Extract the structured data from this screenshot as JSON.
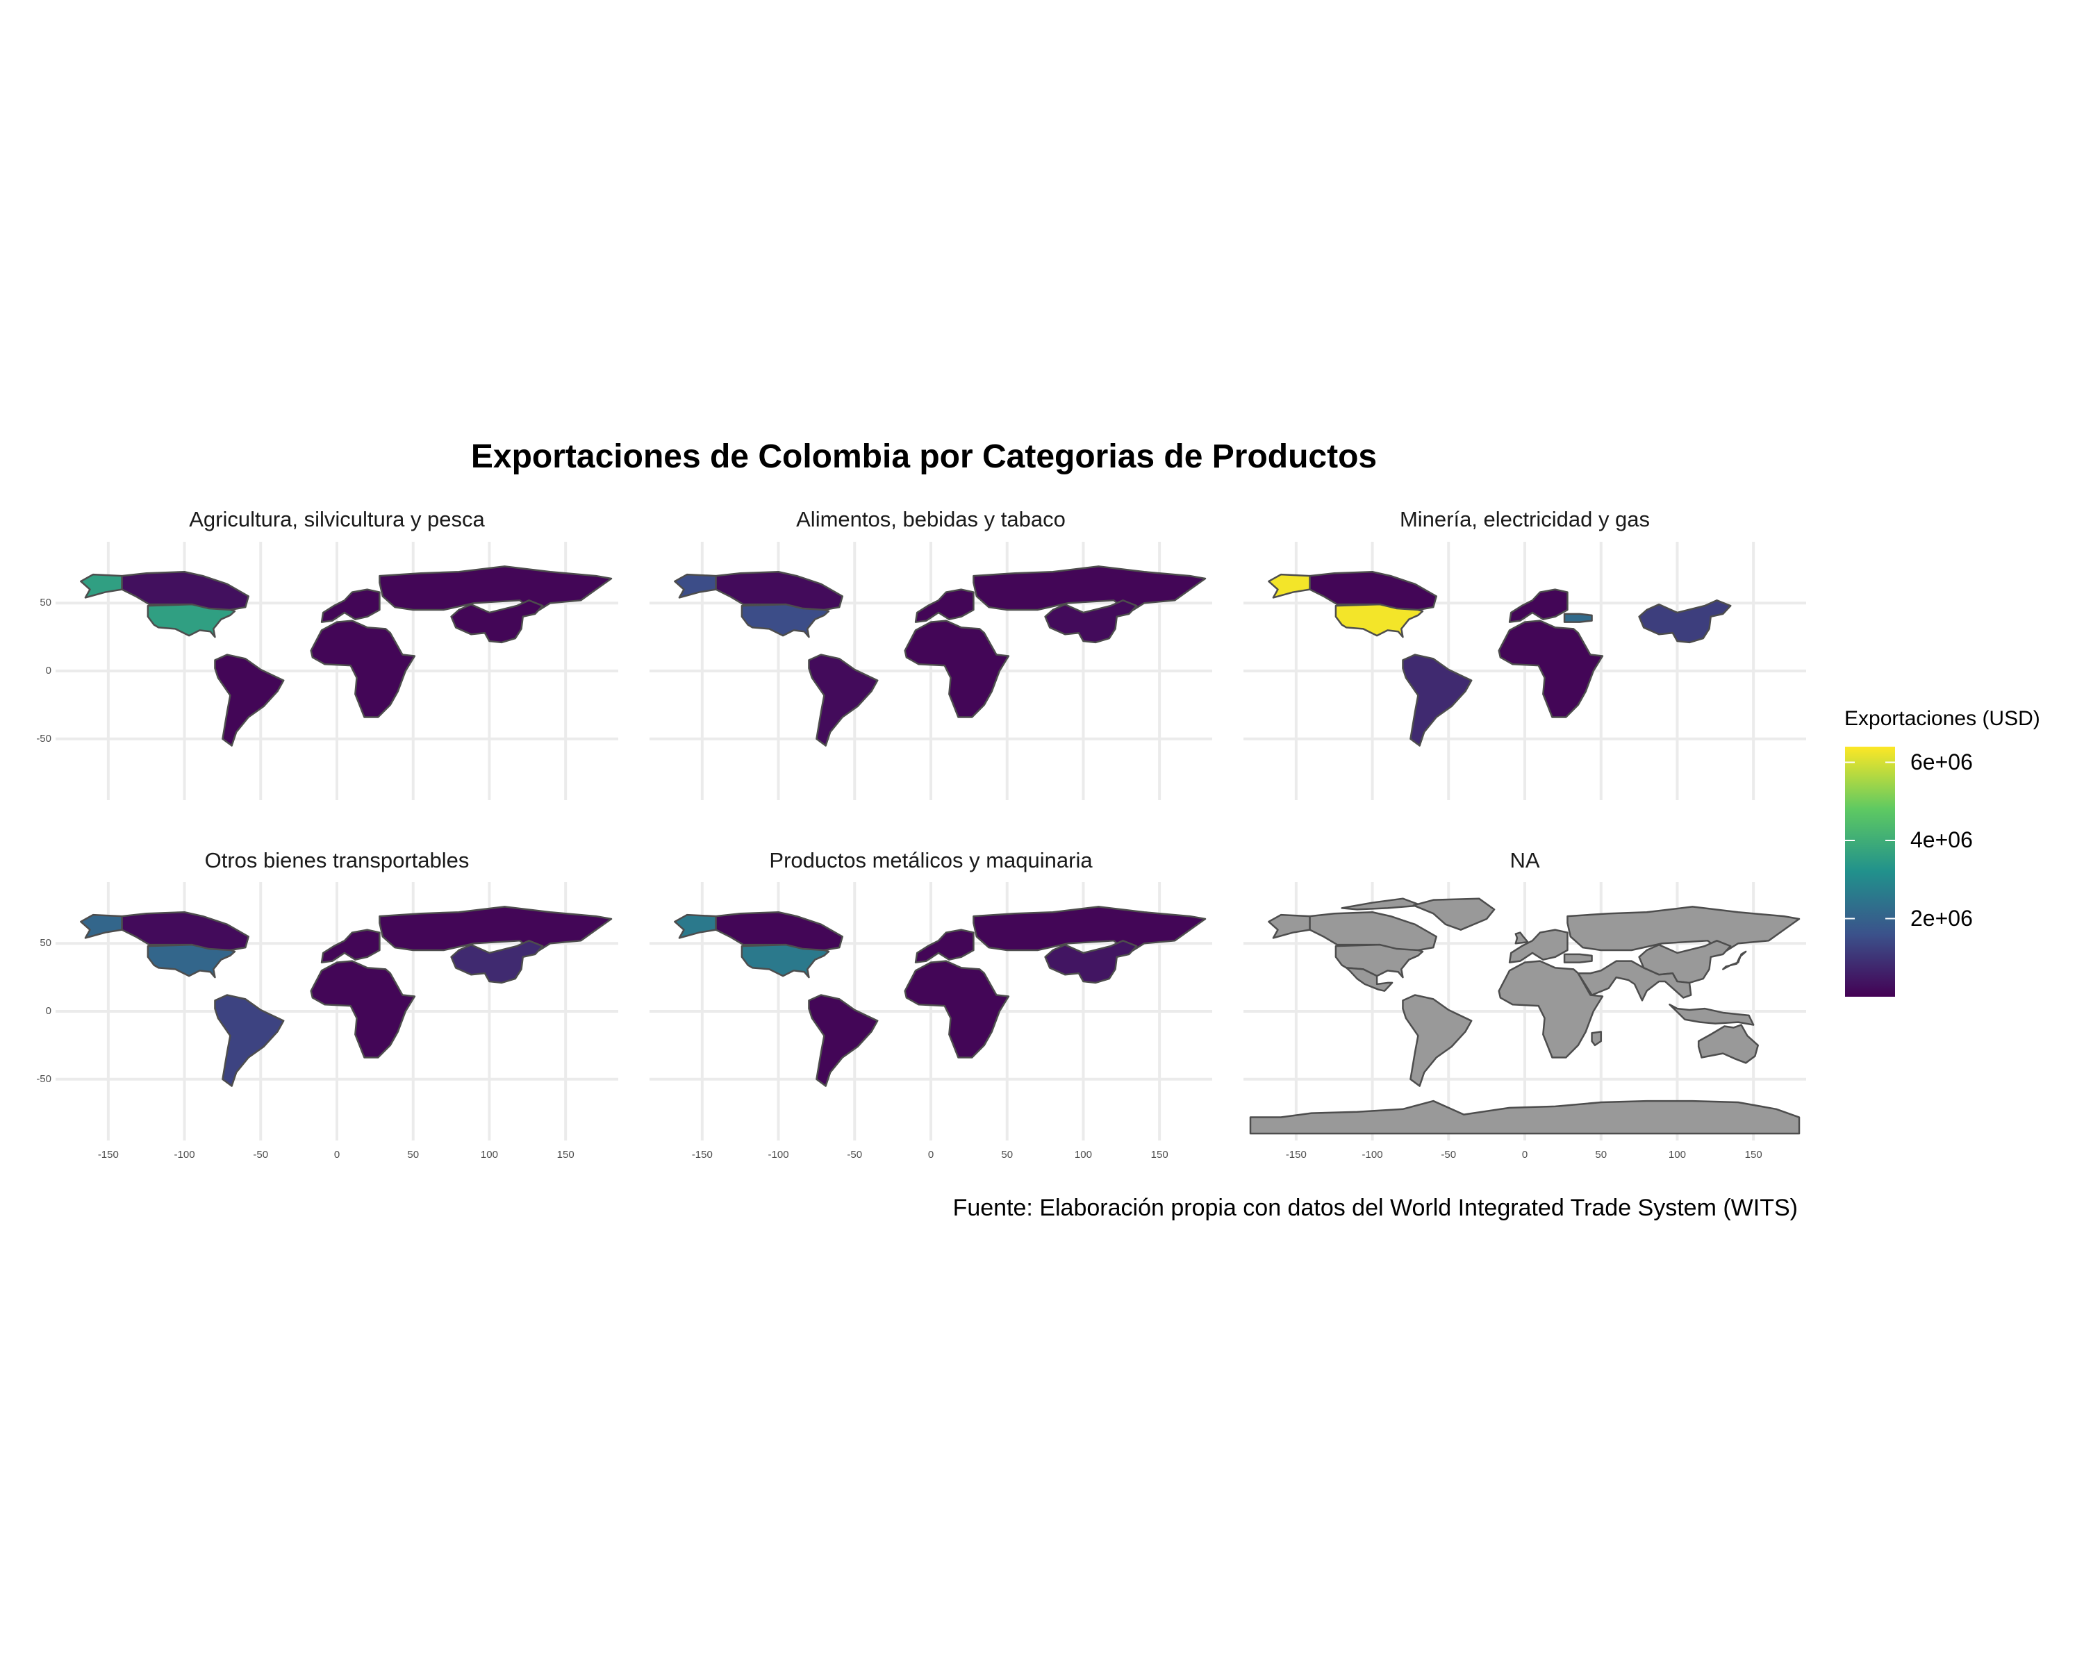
{
  "title": "Exportaciones de Colombia por Categorias de Productos",
  "caption": "Fuente: Elaboración propia con datos del World Integrated Trade System (WITS)",
  "legend": {
    "title": "Exportaciones (USD)",
    "labels": [
      "6e+06",
      "4e+06",
      "2e+06"
    ],
    "values": [
      6000000,
      4000000,
      2000000
    ],
    "range": [
      0,
      6400000
    ],
    "palette": [
      "#440154",
      "#3b528b",
      "#21918c",
      "#5ec962",
      "#fde725"
    ]
  },
  "axes": {
    "x_ticks": [
      "-150",
      "-100",
      "-50",
      "0",
      "50",
      "100",
      "150"
    ],
    "x_values": [
      -150,
      -100,
      -50,
      0,
      50,
      100,
      150
    ],
    "y_ticks": [
      "50",
      "0",
      "-50"
    ],
    "y_values": [
      50,
      0,
      -50
    ],
    "xlim": [
      -180,
      180
    ],
    "ylim": [
      -90,
      90
    ]
  },
  "colors": {
    "background": "#ffffff",
    "grid": "#ebebeb",
    "country_border": "#4d4d4d",
    "na_fill": "#999999"
  },
  "chart_data": {
    "type": "choropleth-facets",
    "facets": [
      {
        "title": "Agricultura, silvicultura y pesca",
        "fill": {
          "USA": 3600000,
          "Canada": 300000,
          "Alaska": 3600000,
          "South America": 100000,
          "Russia": 100000,
          "China": 100000,
          "Europe": 100000,
          "Africa": 100000
        }
      },
      {
        "title": "Alimentos, bebidas y tabaco",
        "fill": {
          "USA": 1500000,
          "Canada": 200000,
          "Alaska": 1500000,
          "South America": 200000,
          "Russia": 100000,
          "China": 200000,
          "Europe": 100000,
          "Africa": 100000
        }
      },
      {
        "title": "Minería, electricidad y gas",
        "fill": {
          "USA": 6300000,
          "Canada": 100000,
          "Alaska": 6300000,
          "South America": 800000,
          "China": 1200000,
          "Turkey": 2200000,
          "Europe": 100000,
          "Africa": 100000
        }
      },
      {
        "title": "Otros bienes transportables",
        "fill": {
          "USA": 2100000,
          "Canada": 200000,
          "Alaska": 2100000,
          "South America": 1300000,
          "Russia": 100000,
          "China": 800000,
          "Europe": 100000,
          "Africa": 100000
        }
      },
      {
        "title": "Productos metálicos y maquinaria",
        "fill": {
          "USA": 2600000,
          "Canada": 100000,
          "Alaska": 2600000,
          "South America": 100000,
          "Russia": 100000,
          "China": 400000,
          "Europe": 100000,
          "Africa": 100000
        }
      },
      {
        "title": "NA",
        "fill": {}
      }
    ]
  }
}
